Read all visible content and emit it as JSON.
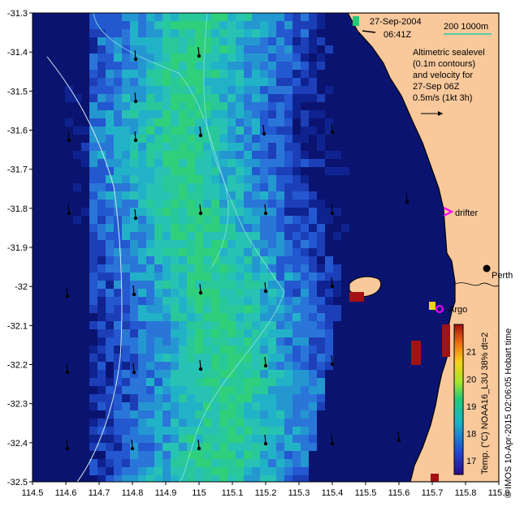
{
  "map": {
    "datetime_line1": "27-Sep-2004",
    "datetime_line2": "06:41Z",
    "isobath_label": "200  1000m",
    "sealevel_note": [
      "Altimetric sealevel",
      "(0.1m contours)",
      "and velocity for",
      "27-Sep 06Z",
      "0.5m/s (1kt 3h)"
    ],
    "places": {
      "drifter": "drifter",
      "argo": "Argo",
      "perth": "Perth"
    },
    "x_ticks": [
      "114.5",
      "114.6",
      "114.7",
      "114.8",
      "114.9",
      "115",
      "115.1",
      "115.2",
      "115.3",
      "115.4",
      "115.5",
      "115.6",
      "115.7",
      "115.8",
      "115.9"
    ],
    "y_ticks": [
      "-31.3",
      "-31.4",
      "-31.5",
      "-31.6",
      "-31.7",
      "-31.8",
      "-31.9",
      "-32",
      "-32.1",
      "-32.2",
      "-32.3",
      "-32.4",
      "-32.5"
    ],
    "lon_range": [
      114.5,
      115.9
    ],
    "lat_range": [
      -32.5,
      -31.3
    ],
    "colorbar": {
      "label": "Temp. (°C) NOAA16_L3U 38% dt=2",
      "ticks": [
        "21",
        "20",
        "19",
        "18",
        "17"
      ],
      "range": [
        16.5,
        22
      ]
    },
    "credit": "© IMOS 10-Apr-2015 02:06:05 Hobart time",
    "colors": {
      "land": "#f9c99c",
      "deep": "#0a1a8a",
      "mid": "#1f5ad8",
      "shelf": "#27b8c4",
      "warm": "#22c97a",
      "island_mark": "#a21212",
      "drifter": "#ff00ff",
      "argo": "#ff00ff",
      "isobath": "#7fe2d6"
    }
  }
}
